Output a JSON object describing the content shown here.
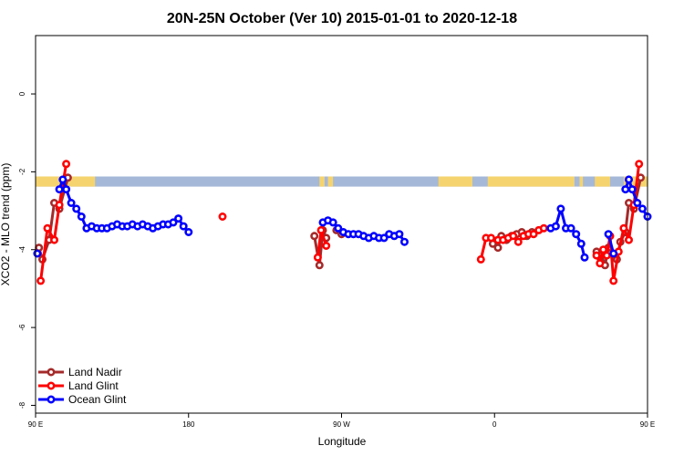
{
  "chart_data": {
    "type": "line",
    "title": "20N-25N October (Ver 10)   2015-01-01 to 2020-12-18",
    "xlabel": "Longitude",
    "ylabel": "XCO2 - MLO trend (ppm)",
    "xlim": [
      90,
      450
    ],
    "ylim": [
      -8.2,
      1.5
    ],
    "x_ticks": [
      {
        "value": 90,
        "label": "90 E"
      },
      {
        "value": 180,
        "label": "180"
      },
      {
        "value": 270,
        "label": "90 W"
      },
      {
        "value": 360,
        "label": "0"
      },
      {
        "value": 450,
        "label": "90 E"
      }
    ],
    "y_ticks": [
      {
        "value": 0,
        "label": "0"
      },
      {
        "value": -2,
        "label": "-2"
      },
      {
        "value": -4,
        "label": "-4"
      },
      {
        "value": -6,
        "label": "-6"
      },
      {
        "value": -8,
        "label": "-8"
      }
    ],
    "land_strip": {
      "y_range": [
        -2.38,
        -2.12
      ],
      "ocean_color": "#a5b8d8",
      "land_color": "#f5d36e",
      "land_segments": [
        [
          90,
          125
        ],
        [
          257,
          260
        ],
        [
          262,
          265
        ],
        [
          327,
          347
        ],
        [
          356,
          407
        ],
        [
          410,
          412
        ],
        [
          419,
          428
        ],
        [
          436,
          450
        ]
      ]
    },
    "legend_position": "bottom-left",
    "series": [
      {
        "name": "Land Nadir",
        "color": "#a52a2a",
        "segments": [
          [
            [
              92,
              -3.95
            ],
            [
              94,
              -4.25
            ],
            [
              98,
              -3.75
            ],
            [
              101,
              -2.8
            ],
            [
              104,
              -2.95
            ],
            [
              109,
              -2.15
            ]
          ],
          [
            [
              254,
              -3.65
            ],
            [
              257,
              -4.4
            ],
            [
              259,
              -3.5
            ],
            [
              261,
              -3.7
            ]
          ],
          [
            [
              267,
              -3.5
            ],
            [
              270,
              -3.6
            ]
          ],
          [
            [
              359,
              -3.85
            ],
            [
              362,
              -3.95
            ],
            [
              364,
              -3.65
            ],
            [
              367,
              -3.75
            ],
            [
              370,
              -3.65
            ],
            [
              373,
              -3.6
            ],
            [
              376,
              -3.55
            ],
            [
              379,
              -3.65
            ],
            [
              382,
              -3.55
            ]
          ],
          [
            [
              420,
              -4.05
            ],
            [
              423,
              -4.15
            ],
            [
              425,
              -4.4
            ],
            [
              427,
              -3.95
            ]
          ],
          [
            [
              432,
              -4.25
            ],
            [
              434,
              -3.8
            ],
            [
              437,
              -3.55
            ],
            [
              439,
              -2.8
            ],
            [
              442,
              -2.95
            ],
            [
              446,
              -2.15
            ]
          ]
        ]
      },
      {
        "name": "Land Glint",
        "color": "#ff0000",
        "segments": [
          [
            [
              93,
              -4.8
            ],
            [
              97,
              -3.45
            ],
            [
              101,
              -3.75
            ],
            [
              104,
              -2.85
            ],
            [
              108,
              -1.8
            ]
          ],
          [
            [
              200,
              -3.15
            ]
          ],
          [
            [
              256,
              -4.2
            ],
            [
              258,
              -3.5
            ],
            [
              261,
              -3.9
            ]
          ],
          [
            [
              352,
              -4.25
            ],
            [
              355,
              -3.7
            ],
            [
              358,
              -3.7
            ],
            [
              362,
              -3.75
            ],
            [
              365,
              -3.75
            ],
            [
              368,
              -3.7
            ],
            [
              371,
              -3.65
            ],
            [
              374,
              -3.8
            ],
            [
              377,
              -3.65
            ],
            [
              380,
              -3.6
            ],
            [
              383,
              -3.6
            ],
            [
              386,
              -3.5
            ],
            [
              389,
              -3.45
            ]
          ],
          [
            [
              420,
              -4.15
            ],
            [
              422,
              -4.35
            ],
            [
              424,
              -4.0
            ],
            [
              426,
              -4.15
            ],
            [
              428,
              -3.65
            ],
            [
              430,
              -4.8
            ],
            [
              433,
              -4.05
            ],
            [
              436,
              -3.45
            ],
            [
              439,
              -3.75
            ],
            [
              442,
              -2.85
            ],
            [
              445,
              -1.8
            ]
          ]
        ]
      },
      {
        "name": "Ocean Glint",
        "color": "#0000ff",
        "segments": [
          [
            [
              91,
              -4.1
            ]
          ],
          [
            [
              104,
              -2.45
            ],
            [
              106,
              -2.2
            ],
            [
              108,
              -2.45
            ],
            [
              111,
              -2.8
            ],
            [
              114,
              -2.95
            ],
            [
              117,
              -3.15
            ],
            [
              120,
              -3.45
            ],
            [
              123,
              -3.4
            ],
            [
              126,
              -3.45
            ],
            [
              129,
              -3.45
            ],
            [
              132,
              -3.45
            ],
            [
              135,
              -3.4
            ],
            [
              138,
              -3.35
            ],
            [
              141,
              -3.4
            ],
            [
              144,
              -3.4
            ],
            [
              147,
              -3.35
            ],
            [
              150,
              -3.4
            ],
            [
              153,
              -3.35
            ],
            [
              156,
              -3.4
            ],
            [
              159,
              -3.45
            ],
            [
              162,
              -3.4
            ],
            [
              165,
              -3.35
            ],
            [
              168,
              -3.35
            ],
            [
              171,
              -3.3
            ],
            [
              174,
              -3.2
            ],
            [
              177,
              -3.4
            ],
            [
              180,
              -3.55
            ]
          ],
          [
            [
              259,
              -3.3
            ],
            [
              262,
              -3.25
            ],
            [
              265,
              -3.3
            ],
            [
              268,
              -3.45
            ],
            [
              271,
              -3.55
            ],
            [
              274,
              -3.6
            ],
            [
              277,
              -3.6
            ],
            [
              280,
              -3.6
            ],
            [
              283,
              -3.65
            ],
            [
              286,
              -3.7
            ],
            [
              289,
              -3.65
            ],
            [
              292,
              -3.7
            ],
            [
              295,
              -3.7
            ],
            [
              298,
              -3.6
            ],
            [
              301,
              -3.65
            ],
            [
              304,
              -3.6
            ],
            [
              307,
              -3.8
            ]
          ],
          [
            [
              393,
              -3.45
            ],
            [
              396,
              -3.4
            ],
            [
              399,
              -2.95
            ],
            [
              402,
              -3.45
            ],
            [
              405,
              -3.45
            ],
            [
              408,
              -3.6
            ],
            [
              411,
              -3.85
            ],
            [
              413,
              -4.2
            ]
          ],
          [
            [
              427,
              -3.6
            ],
            [
              430,
              -4.1
            ]
          ],
          [
            [
              437,
              -2.45
            ],
            [
              439,
              -2.2
            ],
            [
              441,
              -2.45
            ],
            [
              444,
              -2.8
            ],
            [
              447,
              -2.95
            ],
            [
              450,
              -3.15
            ]
          ]
        ]
      }
    ]
  }
}
